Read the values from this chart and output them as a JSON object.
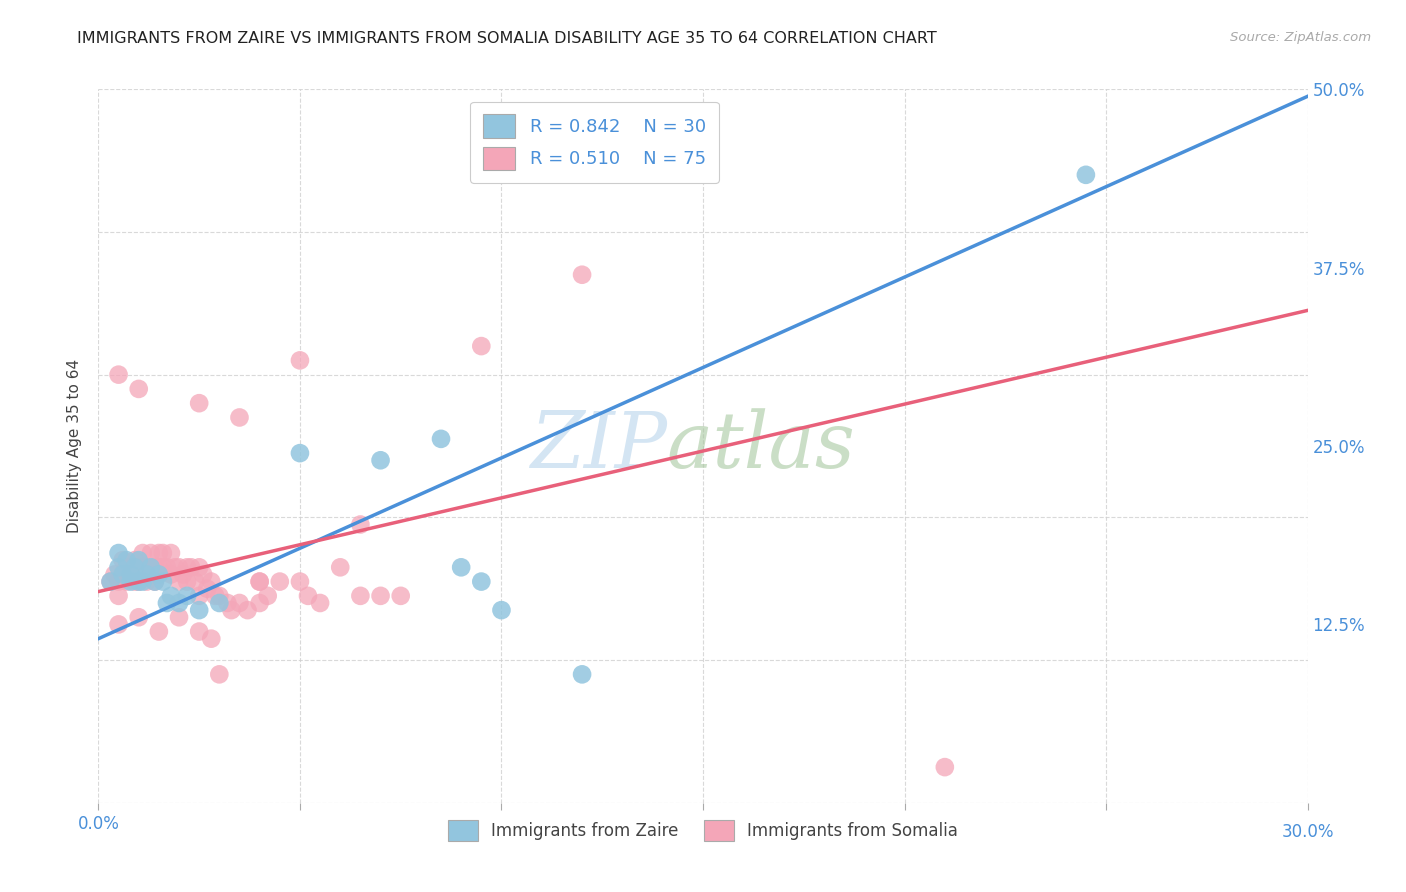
{
  "title": "IMMIGRANTS FROM ZAIRE VS IMMIGRANTS FROM SOMALIA DISABILITY AGE 35 TO 64 CORRELATION CHART",
  "source": "Source: ZipAtlas.com",
  "ylabel": "Disability Age 35 to 64",
  "xmin": 0.0,
  "xmax": 0.3,
  "ymin": 0.0,
  "ymax": 0.5,
  "blue_color": "#92c5de",
  "pink_color": "#f4a6b8",
  "blue_line_color": "#4a90d9",
  "pink_line_color": "#e8607a",
  "blue_line_x0": 0.0,
  "blue_line_y0": 0.115,
  "blue_line_x1": 0.3,
  "blue_line_y1": 0.495,
  "pink_line_x0": 0.0,
  "pink_line_y0": 0.148,
  "pink_line_x1": 0.3,
  "pink_line_y1": 0.345,
  "zaire_points": [
    [
      0.003,
      0.155
    ],
    [
      0.005,
      0.165
    ],
    [
      0.005,
      0.175
    ],
    [
      0.006,
      0.16
    ],
    [
      0.007,
      0.17
    ],
    [
      0.008,
      0.16
    ],
    [
      0.008,
      0.155
    ],
    [
      0.009,
      0.165
    ],
    [
      0.01,
      0.155
    ],
    [
      0.01,
      0.17
    ],
    [
      0.011,
      0.155
    ],
    [
      0.012,
      0.16
    ],
    [
      0.013,
      0.165
    ],
    [
      0.014,
      0.155
    ],
    [
      0.015,
      0.16
    ],
    [
      0.016,
      0.155
    ],
    [
      0.017,
      0.14
    ],
    [
      0.018,
      0.145
    ],
    [
      0.02,
      0.14
    ],
    [
      0.022,
      0.145
    ],
    [
      0.025,
      0.135
    ],
    [
      0.03,
      0.14
    ],
    [
      0.05,
      0.245
    ],
    [
      0.07,
      0.24
    ],
    [
      0.085,
      0.255
    ],
    [
      0.09,
      0.165
    ],
    [
      0.095,
      0.155
    ],
    [
      0.1,
      0.135
    ],
    [
      0.12,
      0.09
    ],
    [
      0.245,
      0.44
    ]
  ],
  "somalia_points": [
    [
      0.003,
      0.155
    ],
    [
      0.004,
      0.16
    ],
    [
      0.005,
      0.155
    ],
    [
      0.005,
      0.145
    ],
    [
      0.006,
      0.17
    ],
    [
      0.007,
      0.165
    ],
    [
      0.007,
      0.155
    ],
    [
      0.008,
      0.165
    ],
    [
      0.008,
      0.16
    ],
    [
      0.009,
      0.17
    ],
    [
      0.009,
      0.155
    ],
    [
      0.01,
      0.165
    ],
    [
      0.01,
      0.155
    ],
    [
      0.011,
      0.175
    ],
    [
      0.011,
      0.165
    ],
    [
      0.012,
      0.165
    ],
    [
      0.012,
      0.155
    ],
    [
      0.013,
      0.175
    ],
    [
      0.013,
      0.16
    ],
    [
      0.014,
      0.165
    ],
    [
      0.014,
      0.155
    ],
    [
      0.015,
      0.175
    ],
    [
      0.015,
      0.165
    ],
    [
      0.016,
      0.175
    ],
    [
      0.016,
      0.165
    ],
    [
      0.017,
      0.165
    ],
    [
      0.018,
      0.175
    ],
    [
      0.018,
      0.16
    ],
    [
      0.019,
      0.165
    ],
    [
      0.02,
      0.165
    ],
    [
      0.02,
      0.155
    ],
    [
      0.021,
      0.16
    ],
    [
      0.022,
      0.165
    ],
    [
      0.022,
      0.155
    ],
    [
      0.023,
      0.165
    ],
    [
      0.024,
      0.155
    ],
    [
      0.025,
      0.165
    ],
    [
      0.025,
      0.145
    ],
    [
      0.026,
      0.16
    ],
    [
      0.027,
      0.15
    ],
    [
      0.028,
      0.155
    ],
    [
      0.029,
      0.145
    ],
    [
      0.03,
      0.145
    ],
    [
      0.032,
      0.14
    ],
    [
      0.033,
      0.135
    ],
    [
      0.035,
      0.14
    ],
    [
      0.037,
      0.135
    ],
    [
      0.04,
      0.155
    ],
    [
      0.04,
      0.14
    ],
    [
      0.042,
      0.145
    ],
    [
      0.045,
      0.155
    ],
    [
      0.05,
      0.155
    ],
    [
      0.052,
      0.145
    ],
    [
      0.055,
      0.14
    ],
    [
      0.06,
      0.165
    ],
    [
      0.065,
      0.145
    ],
    [
      0.07,
      0.145
    ],
    [
      0.075,
      0.145
    ],
    [
      0.005,
      0.3
    ],
    [
      0.01,
      0.29
    ],
    [
      0.025,
      0.28
    ],
    [
      0.035,
      0.27
    ],
    [
      0.05,
      0.31
    ],
    [
      0.065,
      0.195
    ],
    [
      0.095,
      0.32
    ],
    [
      0.005,
      0.125
    ],
    [
      0.01,
      0.13
    ],
    [
      0.015,
      0.12
    ],
    [
      0.02,
      0.13
    ],
    [
      0.025,
      0.12
    ],
    [
      0.028,
      0.115
    ],
    [
      0.03,
      0.09
    ],
    [
      0.04,
      0.155
    ],
    [
      0.12,
      0.37
    ],
    [
      0.21,
      0.025
    ]
  ]
}
